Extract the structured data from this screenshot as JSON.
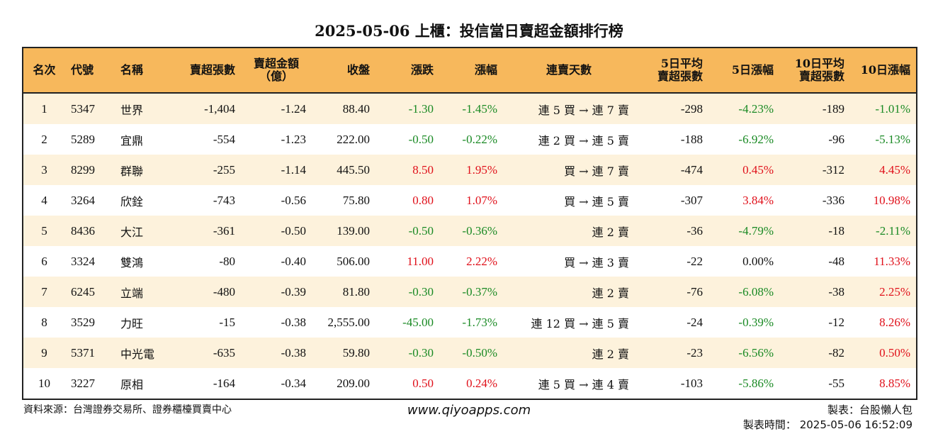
{
  "title": "2025-05-06 上櫃：投信當日賣超金額排行榜",
  "headers": {
    "rank": "名次",
    "code": "代號",
    "name": "名稱",
    "sell_shares": "賣超張數",
    "sell_amount_1": "賣超金額",
    "sell_amount_2": "（億）",
    "close": "收盤",
    "change": "漲跌",
    "change_pct": "漲幅",
    "streak": "連賣天數",
    "avg5_1": "5日平均",
    "avg5_2": "賣超張數",
    "pct5": "5日漲幅",
    "avg10_1": "10日平均",
    "avg10_2": "賣超張數",
    "pct10": "10日漲幅"
  },
  "rows": [
    {
      "rank": "1",
      "code": "5347",
      "name": "世界",
      "sell_shares": "-1,404",
      "sell_amount": "-1.24",
      "close": "88.40",
      "change": "-1.30",
      "change_pct": "-1.45%",
      "streak": "連 5 買 → 連 7 賣",
      "avg5": "-298",
      "pct5": "-4.23%",
      "avg10": "-189",
      "pct10": "-1.01%"
    },
    {
      "rank": "2",
      "code": "5289",
      "name": "宜鼎",
      "sell_shares": "-554",
      "sell_amount": "-1.23",
      "close": "222.00",
      "change": "-0.50",
      "change_pct": "-0.22%",
      "streak": "連 2 買 → 連 5 賣",
      "avg5": "-188",
      "pct5": "-6.92%",
      "avg10": "-96",
      "pct10": "-5.13%"
    },
    {
      "rank": "3",
      "code": "8299",
      "name": "群聯",
      "sell_shares": "-255",
      "sell_amount": "-1.14",
      "close": "445.50",
      "change": "8.50",
      "change_pct": "1.95%",
      "streak": "買 → 連 7 賣",
      "avg5": "-474",
      "pct5": "0.45%",
      "avg10": "-312",
      "pct10": "4.45%"
    },
    {
      "rank": "4",
      "code": "3264",
      "name": "欣銓",
      "sell_shares": "-743",
      "sell_amount": "-0.56",
      "close": "75.80",
      "change": "0.80",
      "change_pct": "1.07%",
      "streak": "買 → 連 5 賣",
      "avg5": "-307",
      "pct5": "3.84%",
      "avg10": "-336",
      "pct10": "10.98%"
    },
    {
      "rank": "5",
      "code": "8436",
      "name": "大江",
      "sell_shares": "-361",
      "sell_amount": "-0.50",
      "close": "139.00",
      "change": "-0.50",
      "change_pct": "-0.36%",
      "streak": "連 2 賣",
      "avg5": "-36",
      "pct5": "-4.79%",
      "avg10": "-18",
      "pct10": "-2.11%"
    },
    {
      "rank": "6",
      "code": "3324",
      "name": "雙鴻",
      "sell_shares": "-80",
      "sell_amount": "-0.40",
      "close": "506.00",
      "change": "11.00",
      "change_pct": "2.22%",
      "streak": "買 → 連 3 賣",
      "avg5": "-22",
      "pct5": "0.00%",
      "avg10": "-48",
      "pct10": "11.33%"
    },
    {
      "rank": "7",
      "code": "6245",
      "name": "立端",
      "sell_shares": "-480",
      "sell_amount": "-0.39",
      "close": "81.80",
      "change": "-0.30",
      "change_pct": "-0.37%",
      "streak": "連 2 賣",
      "avg5": "-76",
      "pct5": "-6.08%",
      "avg10": "-38",
      "pct10": "2.25%"
    },
    {
      "rank": "8",
      "code": "3529",
      "name": "力旺",
      "sell_shares": "-15",
      "sell_amount": "-0.38",
      "close": "2,555.00",
      "change": "-45.00",
      "change_pct": "-1.73%",
      "streak": "連 12 買 → 連 5 賣",
      "avg5": "-24",
      "pct5": "-0.39%",
      "avg10": "-12",
      "pct10": "8.26%"
    },
    {
      "rank": "9",
      "code": "5371",
      "name": "中光電",
      "sell_shares": "-635",
      "sell_amount": "-0.38",
      "close": "59.80",
      "change": "-0.30",
      "change_pct": "-0.50%",
      "streak": "連 2 賣",
      "avg5": "-23",
      "pct5": "-6.56%",
      "avg10": "-82",
      "pct10": "0.50%"
    },
    {
      "rank": "10",
      "code": "3227",
      "name": "原相",
      "sell_shares": "-164",
      "sell_amount": "-0.34",
      "close": "209.00",
      "change": "0.50",
      "change_pct": "0.24%",
      "streak": "連 5 買 → 連 4 賣",
      "avg5": "-103",
      "pct5": "-5.86%",
      "avg10": "-55",
      "pct10": "8.85%"
    }
  ],
  "colors": {
    "up": "#e0101a",
    "down": "#1a8a24",
    "header_bg": "#f7b85c",
    "stripe": "#fdf2dc"
  },
  "footer": {
    "source": "資料來源：台灣證券交易所、證券櫃檯買賣中心",
    "website": "www.qiyoapps.com",
    "maker": "製表：台股懶人包",
    "time": "製表時間： 2025-05-06 16:52:09"
  }
}
